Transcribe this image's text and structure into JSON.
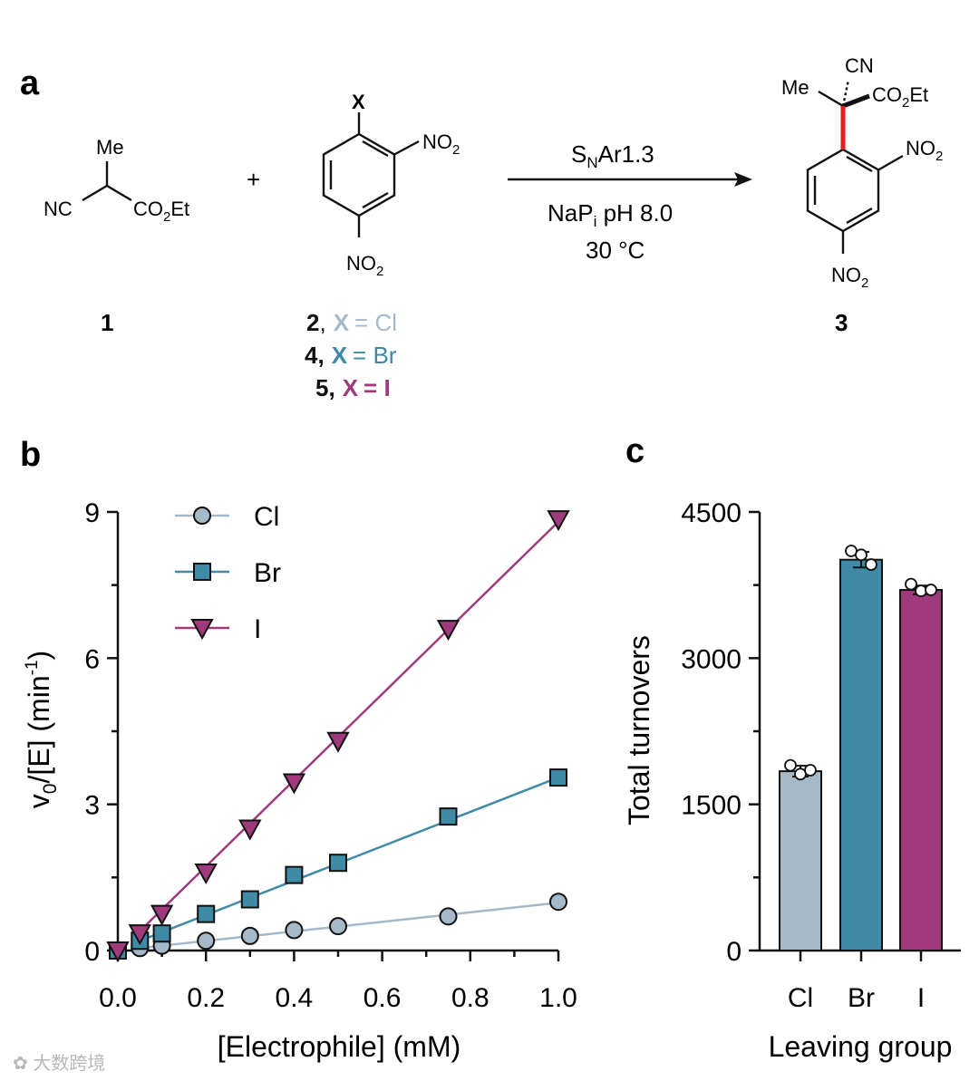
{
  "figure": {
    "panels": {
      "a": "a",
      "b": "b",
      "c": "c"
    },
    "colors": {
      "Cl": "#a6b9c8",
      "Br": "#3f8aa6",
      "I": "#a13a7c",
      "bond_highlight": "#e02020"
    }
  },
  "scheme": {
    "plus": "+",
    "compound1": {
      "label": "1",
      "me": "Me",
      "nc": "NC",
      "co2et_prefix": "CO",
      "co2et_sub": "2",
      "co2et_suffix": "Et"
    },
    "aryl_halide": {
      "x": "X",
      "no2_prefix": "NO",
      "no2_sub": "2",
      "labels": [
        {
          "num": "2",
          "sep": ",",
          "x": "X",
          "rest": "= Cl"
        },
        {
          "num": "4,",
          "sep": "",
          "x": "X",
          "rest": "= Br"
        },
        {
          "num": "5,",
          "sep": "",
          "x": "X",
          "rest": "= I"
        }
      ]
    },
    "conditions": {
      "enzyme_s": "S",
      "enzyme_sub": "N",
      "enzyme_rest": "Ar1.3",
      "buffer_prefix": "NaP",
      "buffer_sub": "i",
      "buffer_rest": " pH 8.0",
      "temperature": "30 °C"
    },
    "product": {
      "label": "3",
      "me": "Me",
      "cn": "CN",
      "co2et_prefix": "CO",
      "co2et_sub": "2",
      "co2et_suffix": "Et",
      "no2_prefix": "NO",
      "no2_sub": "2"
    }
  },
  "chart_data": [
    {
      "type": "scatter",
      "title": "",
      "xlabel": "[Electrophile] (mM)",
      "ylabel_main": "v",
      "ylabel_sub": "0",
      "ylabel_mid": "/[E] (min",
      "ylabel_sup": "-1",
      "ylabel_end": ")",
      "xlim": [
        0,
        1.0
      ],
      "ylim": [
        0,
        9
      ],
      "xticks": [
        "0.0",
        "0.2",
        "0.4",
        "0.6",
        "0.8",
        "1.0"
      ],
      "yticks": [
        "0",
        "3",
        "6",
        "9"
      ],
      "legend_position": "top-left",
      "series": [
        {
          "name": "Cl",
          "marker": "circle",
          "x": [
            0,
            0.05,
            0.1,
            0.2,
            0.3,
            0.4,
            0.5,
            0.75,
            1.0
          ],
          "y": [
            0,
            0.05,
            0.1,
            0.2,
            0.3,
            0.42,
            0.5,
            0.7,
            1.0
          ],
          "fit": [
            [
              0.05,
              0.05
            ],
            [
              1.0,
              0.98
            ]
          ]
        },
        {
          "name": "Br",
          "marker": "square",
          "x": [
            0,
            0.05,
            0.1,
            0.2,
            0.3,
            0.4,
            0.5,
            0.75,
            1.0
          ],
          "y": [
            0,
            0.2,
            0.35,
            0.75,
            1.05,
            1.55,
            1.8,
            2.75,
            3.55
          ],
          "fit": [
            [
              0.05,
              0.2
            ],
            [
              1.0,
              3.55
            ]
          ]
        },
        {
          "name": "I",
          "marker": "triangle-down",
          "x": [
            0,
            0.05,
            0.1,
            0.2,
            0.3,
            0.4,
            0.5,
            0.75,
            1.0
          ],
          "y": [
            0,
            0.35,
            0.75,
            1.6,
            2.5,
            3.45,
            4.3,
            6.6,
            8.85
          ],
          "fit": [
            [
              0.05,
              0.4
            ],
            [
              1.0,
              8.8
            ]
          ]
        }
      ]
    },
    {
      "type": "bar",
      "title": "",
      "xlabel": "Leaving group",
      "ylabel": "Total turnovers",
      "ylim": [
        0,
        4500
      ],
      "yticks": [
        "0",
        "1500",
        "3000",
        "4500"
      ],
      "categories": [
        "Cl",
        "Br",
        "I"
      ],
      "values": [
        1840,
        4010,
        3700
      ],
      "errors": [
        55,
        80,
        45
      ],
      "replicates": [
        [
          1900,
          1810,
          1850
        ],
        [
          4100,
          4060,
          3960
        ],
        [
          3760,
          3690,
          3700
        ]
      ]
    }
  ]
}
